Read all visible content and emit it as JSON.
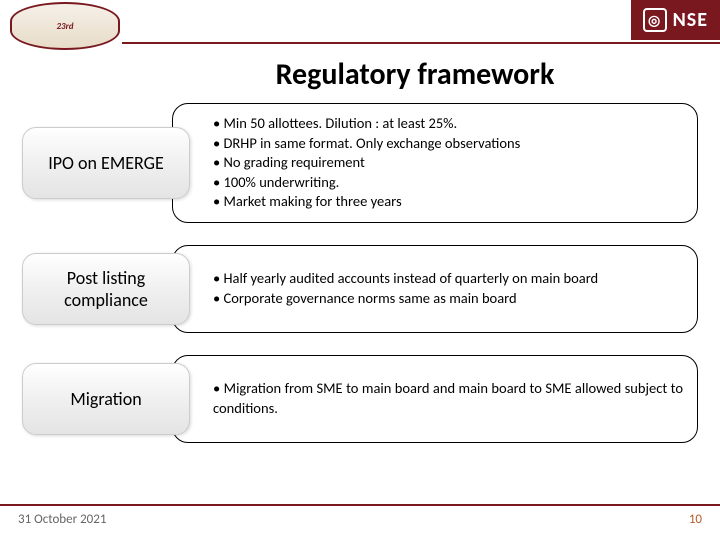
{
  "header": {
    "left_logo_text": "23rd",
    "right_logo_text": "NSE",
    "right_logo_glyph": "◎"
  },
  "title": "Regulatory framework",
  "rows": [
    {
      "label": "IPO on EMERGE",
      "bullets": [
        " Min 50 allottees.  Dilution : at least 25%.",
        " DRHP in same format.  Only exchange observations",
        "No grading requirement",
        "100% underwriting.",
        "Market making for three years"
      ]
    },
    {
      "label": "Post listing compliance",
      "bullets": [
        "Half yearly audited accounts instead of quarterly on main board",
        "Corporate governance norms same as main board"
      ]
    },
    {
      "label": "Migration",
      "bullets": [
        "Migration from SME to main board and main board to SME allowed subject to conditions."
      ]
    }
  ],
  "footer": {
    "date": "31 October 2021",
    "page": "10"
  },
  "colors": {
    "brand": "#7a1820",
    "page_num": "#b85c2e"
  }
}
